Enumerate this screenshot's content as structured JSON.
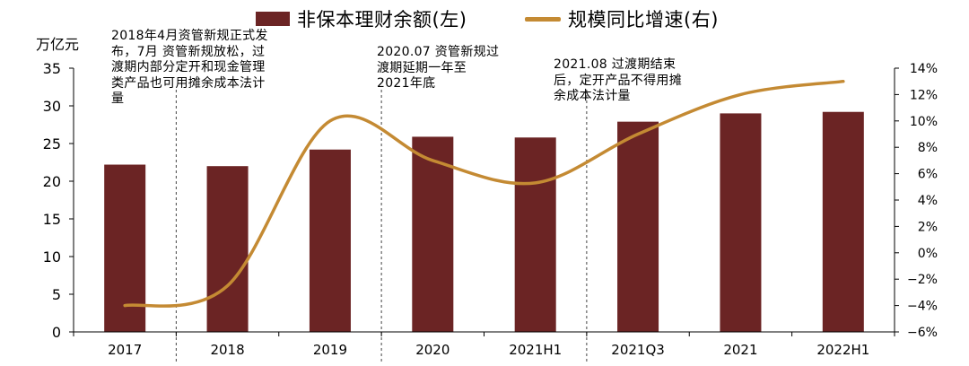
{
  "legend": {
    "bar_label": "非保本理财余额(左)",
    "line_label": "规模同比增速(右)"
  },
  "left_unit": "万亿元",
  "annotations": [
    "2018年4月资管新规正式发\n布，7月 资管新规放松，过\n渡期内部分定开和现金管理\n类产品也可用摊余成本法计\n量",
    "2020.07 资管新规过\n渡期延期一年至\n2021年底",
    "2021.08 过渡期结束\n后，定开产品不得用摊\n余成本法计量"
  ],
  "colors": {
    "bar": "#6b2424",
    "line": "#c48a33",
    "axis": "#000000"
  },
  "chart_data": {
    "type": "bar",
    "categories": [
      "2017",
      "2018",
      "2019",
      "2020",
      "2021H1",
      "2021Q3",
      "2021",
      "2022H1"
    ],
    "series": [
      {
        "name": "非保本理财余额(左)",
        "type": "bar",
        "axis": "left",
        "values": [
          22.2,
          22.0,
          24.2,
          25.9,
          25.8,
          27.9,
          29.0,
          29.2
        ]
      },
      {
        "name": "规模同比增速(右)",
        "type": "line",
        "axis": "right",
        "values": [
          -4.0,
          -2.5,
          10.0,
          7.0,
          5.3,
          9.0,
          12.0,
          13.0
        ],
        "smooth": true
      }
    ],
    "ylabel": "万亿元",
    "ylim": [
      0,
      35
    ],
    "yticks": [
      "0",
      "5",
      "10",
      "15",
      "20",
      "25",
      "30",
      "35"
    ],
    "y2lim": [
      -6,
      14
    ],
    "y2ticks": [
      "-6%",
      "-4%",
      "-2%",
      "0%",
      "2%",
      "4%",
      "6%",
      "8%",
      "10%",
      "12%",
      "14%"
    ],
    "legend_position": "top",
    "grid": false,
    "event_markers_between": [
      "2017|2018",
      "2019|2020",
      "2021H1|2021Q3"
    ]
  }
}
